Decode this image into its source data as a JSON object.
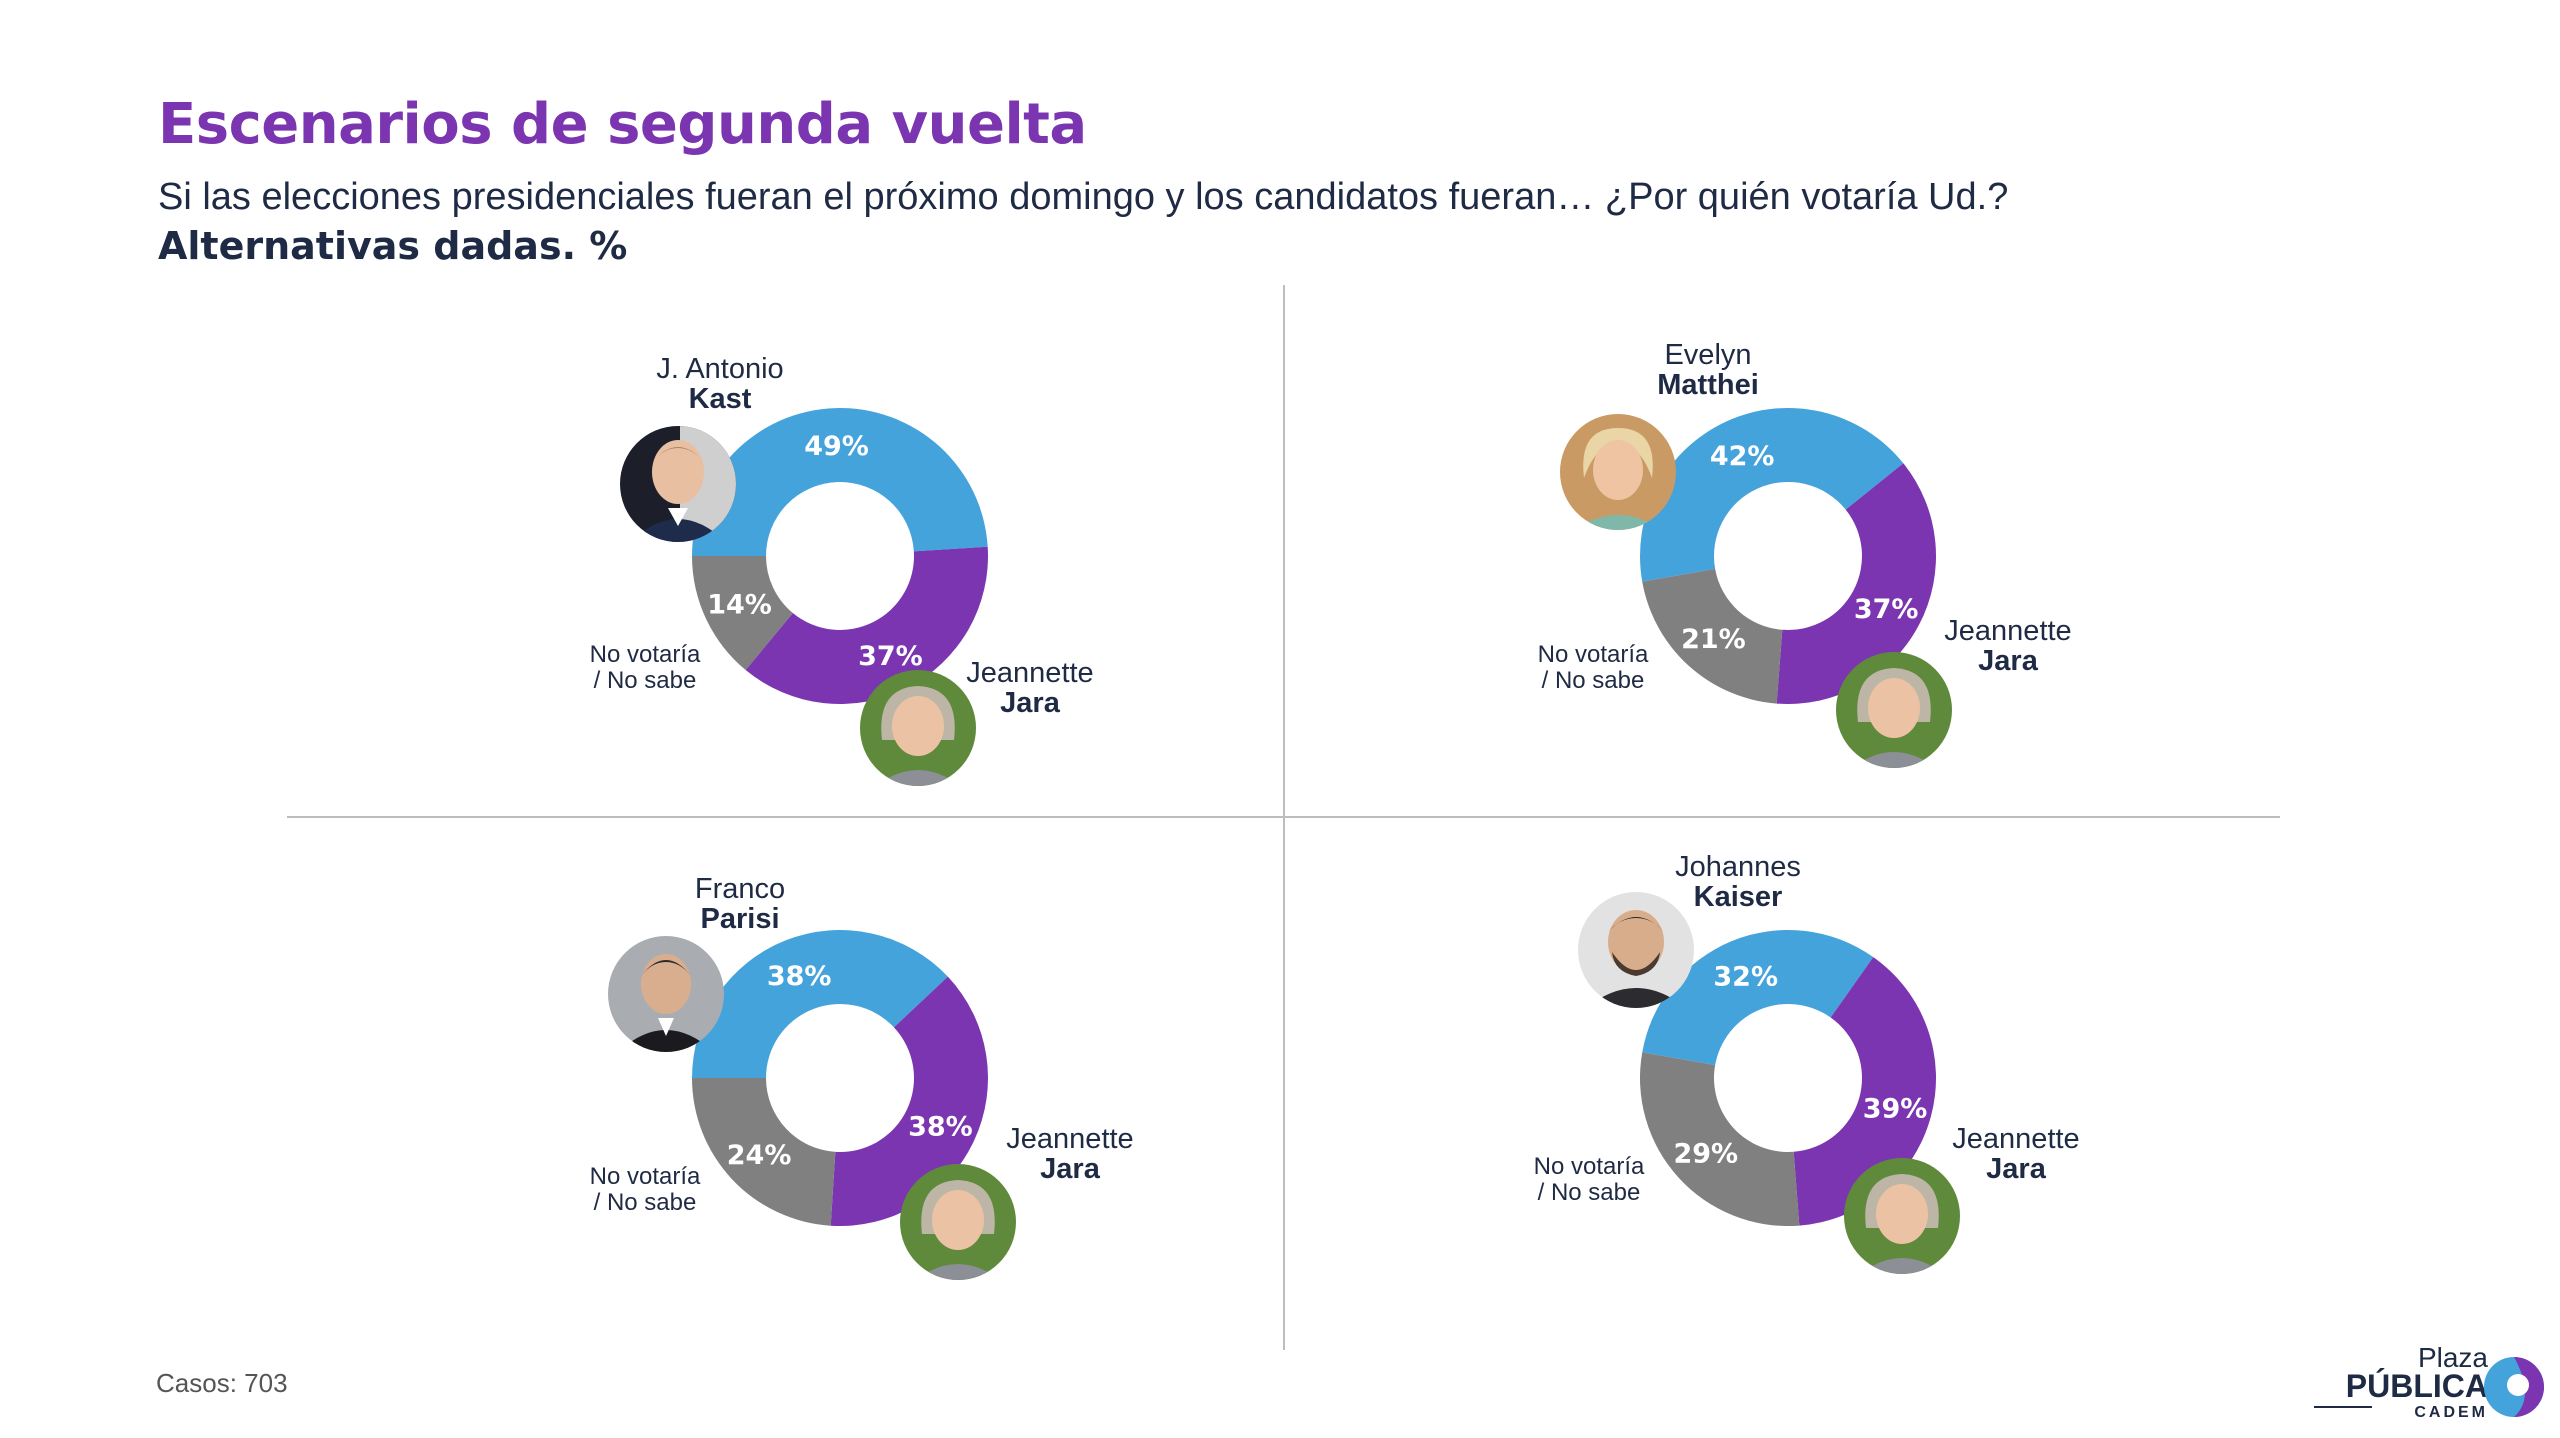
{
  "header": {
    "title": "Escenarios de segunda vuelta",
    "subtitle": "Si las elecciones presidenciales fueran el próximo domingo y los candidatos fueran… ¿Por quién votaría Ud.?",
    "subtitle_bold": "Alternativas dadas. %"
  },
  "footer": {
    "cases": "Casos: 703"
  },
  "logo": {
    "line1": "Plaza",
    "line2": "PÚBLICA",
    "line3": "CADEM"
  },
  "colors": {
    "challenger": "#45a3dc",
    "jara": "#7b35b0",
    "neither": "#808080",
    "title": "#7b35b0"
  },
  "chart_data": [
    {
      "type": "pie",
      "style": "donut",
      "slices": [
        {
          "name": "J. Antonio Kast",
          "value": 49,
          "label": "49%"
        },
        {
          "name": "Jeannette Jara",
          "value": 37,
          "label": "37%"
        },
        {
          "name": "No votaría / No sabe",
          "value": 14,
          "label": "14%"
        }
      ],
      "challenger": {
        "first": "J. Antonio",
        "last": "Kast"
      },
      "jara": {
        "first": "Jeannette",
        "last": "Jara"
      },
      "neither": {
        "line1": "No votaría",
        "line2": "/ No sabe"
      }
    },
    {
      "type": "pie",
      "style": "donut",
      "slices": [
        {
          "name": "Evelyn Matthei",
          "value": 42,
          "label": "42%"
        },
        {
          "name": "Jeannette Jara",
          "value": 37,
          "label": "37%"
        },
        {
          "name": "No votaría / No sabe",
          "value": 21,
          "label": "21%"
        }
      ],
      "challenger": {
        "first": "Evelyn",
        "last": "Matthei"
      },
      "jara": {
        "first": "Jeannette",
        "last": "Jara"
      },
      "neither": {
        "line1": "No votaría",
        "line2": "/ No sabe"
      }
    },
    {
      "type": "pie",
      "style": "donut",
      "slices": [
        {
          "name": "Franco Parisi",
          "value": 38,
          "label": "38%"
        },
        {
          "name": "Jeannette Jara",
          "value": 38,
          "label": "38%"
        },
        {
          "name": "No votaría / No sabe",
          "value": 24,
          "label": "24%"
        }
      ],
      "challenger": {
        "first": "Franco",
        "last": "Parisi"
      },
      "jara": {
        "first": "Jeannette",
        "last": "Jara"
      },
      "neither": {
        "line1": "No votaría",
        "line2": "/ No sabe"
      }
    },
    {
      "type": "pie",
      "style": "donut",
      "slices": [
        {
          "name": "Johannes Kaiser",
          "value": 32,
          "label": "32%"
        },
        {
          "name": "Jeannette Jara",
          "value": 39,
          "label": "39%"
        },
        {
          "name": "No votaría / No sabe",
          "value": 29,
          "label": "29%"
        }
      ],
      "challenger": {
        "first": "Johannes",
        "last": "Kaiser"
      },
      "jara": {
        "first": "Jeannette",
        "last": "Jara"
      },
      "neither": {
        "line1": "No votaría",
        "line2": "/ No sabe"
      }
    }
  ]
}
